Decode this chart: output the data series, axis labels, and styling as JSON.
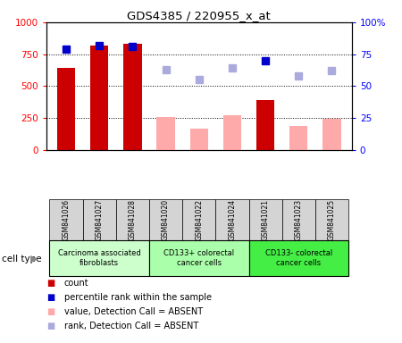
{
  "title": "GDS4385 / 220955_x_at",
  "samples": [
    "GSM841026",
    "GSM841027",
    "GSM841028",
    "GSM841020",
    "GSM841022",
    "GSM841024",
    "GSM841021",
    "GSM841023",
    "GSM841025"
  ],
  "count_values": [
    640,
    820,
    830,
    null,
    null,
    null,
    390,
    null,
    null
  ],
  "count_absent_values": [
    null,
    null,
    null,
    255,
    170,
    270,
    null,
    190,
    245
  ],
  "rank_present_values": [
    79,
    82,
    81,
    null,
    null,
    null,
    70,
    null,
    null
  ],
  "rank_absent_values": [
    null,
    null,
    null,
    63,
    55,
    64,
    null,
    58,
    62
  ],
  "ylim_left": [
    0,
    1000
  ],
  "ylim_right": [
    0,
    100
  ],
  "yticks_left": [
    0,
    250,
    500,
    750,
    1000
  ],
  "ytick_labels_left": [
    "0",
    "250",
    "500",
    "750",
    "1000"
  ],
  "yticks_right": [
    0,
    25,
    50,
    75,
    100
  ],
  "ytick_labels_right": [
    "0",
    "25",
    "50",
    "75",
    "100%"
  ],
  "cell_groups": [
    {
      "label": "Carcinoma associated\nfibroblasts",
      "indices": [
        0,
        1,
        2
      ],
      "color": "#ccffcc"
    },
    {
      "label": "CD133+ colorectal\ncancer cells",
      "indices": [
        3,
        4,
        5
      ],
      "color": "#aaffaa"
    },
    {
      "label": "CD133- colorectal\ncancer cells",
      "indices": [
        6,
        7,
        8
      ],
      "color": "#44ee44"
    }
  ],
  "colors": {
    "count_present": "#cc0000",
    "count_absent": "#ffaaaa",
    "rank_present": "#0000cc",
    "rank_absent": "#aaaadd"
  },
  "bar_width": 0.55
}
